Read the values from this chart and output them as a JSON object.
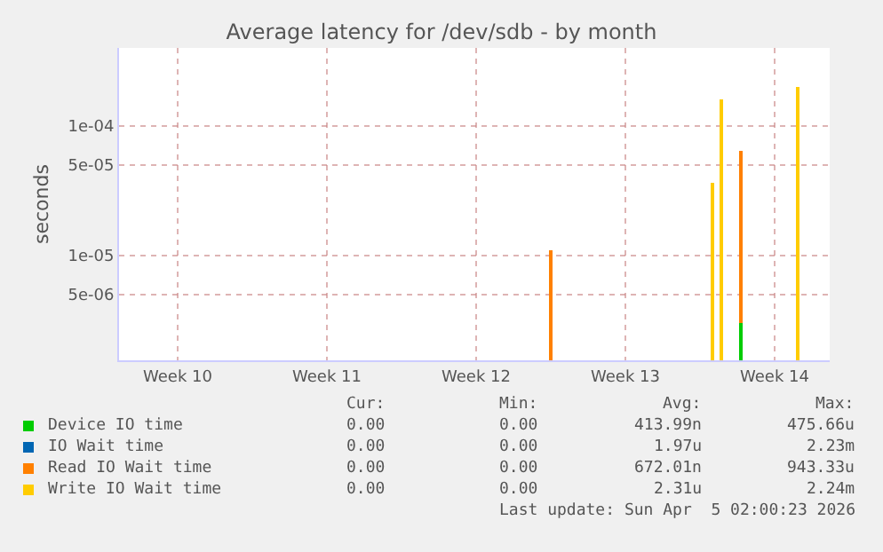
{
  "chart_data": {
    "type": "bar",
    "title": "Average latency for /dev/sdb - by month",
    "ylabel": "seconds",
    "x": [
      "2026-03-23T00:00",
      "2026-03-30T14:00",
      "2026-03-31T00:00",
      "2026-03-31T22:00",
      "2026-04-03T14:00"
    ],
    "series": [
      {
        "name": "Device IO time",
        "color": "#00cc00",
        "values": [
          null,
          null,
          null,
          3e-06,
          null
        ]
      },
      {
        "name": "IO Wait time",
        "color": "#0066b3",
        "values": [
          null,
          null,
          null,
          null,
          null
        ]
      },
      {
        "name": "Read IO Wait time",
        "color": "#ff8000",
        "values": [
          1.1e-05,
          null,
          null,
          6.4e-05,
          null
        ]
      },
      {
        "name": "Write IO Wait time",
        "color": "#ffcc00",
        "values": [
          null,
          3.6e-05,
          0.00016,
          null,
          0.0002
        ]
      }
    ],
    "log": "y",
    "ylim": [
      1.56e-06,
      0.0004
    ],
    "yticks": [
      {
        "value": 0.0001,
        "label": "1e-04"
      },
      {
        "value": 5e-05,
        "label": "5e-05"
      },
      {
        "value": 1e-05,
        "label": "1e-05"
      },
      {
        "value": 5e-06,
        "label": "5e-06"
      }
    ],
    "xlim": [
      "2026-03-02T18:00",
      "2026-04-05T02:00"
    ],
    "xticks": [
      {
        "value": "2026-03-05T12:00",
        "label": "Week 10"
      },
      {
        "value": "2026-03-12T12:00",
        "label": "Week 11"
      },
      {
        "value": "2026-03-19T12:00",
        "label": "Week 12"
      },
      {
        "value": "2026-03-26T12:00",
        "label": "Week 13"
      },
      {
        "value": "2026-04-02T12:00",
        "label": "Week 14"
      }
    ],
    "grid": true,
    "legend": "bottom left",
    "annotations": [
      "Cur:",
      "Min:",
      "Avg:",
      "Max:",
      "0.00",
      "0.00",
      "413.99n",
      "475.66u",
      "0.00",
      "0.00",
      "1.97u",
      "2.23m",
      "0.00",
      "0.00",
      "672.01n",
      "943.33u",
      "0.00",
      "0.00",
      "2.31u",
      "2.24m",
      "Last update: Sun Apr  5 02:00:23 2026"
    ]
  }
}
